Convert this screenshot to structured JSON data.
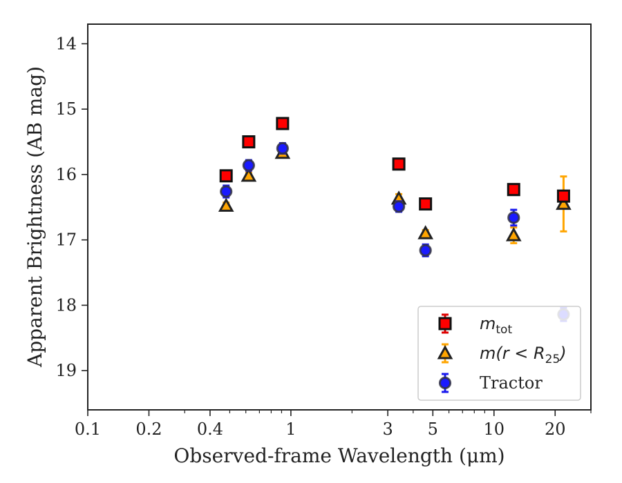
{
  "chart_data": {
    "type": "scatter",
    "xlabel": "Observed-frame Wavelength (μm)",
    "ylabel": "Apparent Brightness (AB mag)",
    "xscale": "log",
    "xlim": [
      0.1,
      30
    ],
    "ylim": [
      19.6,
      13.7
    ],
    "y_inverted": true,
    "x_ticks": [
      0.1,
      0.2,
      0.4,
      1,
      3,
      5,
      10,
      20
    ],
    "x_tick_labels": [
      "0.1",
      "0.2",
      "0.4",
      "1",
      "3",
      "5",
      "10",
      "20"
    ],
    "y_ticks": [
      14,
      15,
      16,
      17,
      18,
      19
    ],
    "y_tick_labels": [
      "14",
      "15",
      "16",
      "17",
      "18",
      "19"
    ],
    "grid": false,
    "legend_position": "lower-right",
    "series": [
      {
        "name": "m_tot",
        "marker": "square",
        "color": "#ff0000",
        "edge": "#111111",
        "errcolor": "#dd0000",
        "x": [
          0.48,
          0.62,
          0.91,
          3.4,
          4.6,
          12.5,
          22.0
        ],
        "y": [
          16.02,
          15.5,
          15.22,
          15.84,
          16.45,
          16.23,
          16.33
        ],
        "err": [
          0.05,
          0.05,
          0.05,
          0.07,
          0.05,
          0.05,
          0.05
        ]
      },
      {
        "name": "m(r < R25)",
        "marker": "triangle",
        "color": "#ffa500",
        "edge": "#222222",
        "errcolor": "#ffa500",
        "x": [
          0.48,
          0.62,
          0.91,
          3.4,
          4.6,
          12.5,
          22.0
        ],
        "y": [
          16.48,
          16.02,
          15.67,
          16.37,
          16.9,
          16.93,
          16.45
        ],
        "err": [
          0.05,
          0.05,
          0.05,
          0.07,
          0.05,
          0.12,
          0.42
        ]
      },
      {
        "name": "Tractor",
        "marker": "circle",
        "color": "#1a1aff",
        "edge": "#333344",
        "errcolor": "#1a1aee",
        "x": [
          0.48,
          0.62,
          0.91,
          3.4,
          4.6,
          12.5,
          22.0
        ],
        "y": [
          16.26,
          15.86,
          15.6,
          16.49,
          17.16,
          16.66,
          18.14
        ],
        "err": [
          0.09,
          0.08,
          0.08,
          0.08,
          0.09,
          0.12,
          0.1
        ]
      }
    ]
  },
  "legend": {
    "entries": [
      {
        "label_main": "m",
        "label_sub": "tot"
      },
      {
        "label_main": "m(r < R",
        "label_sub": "25",
        "label_tail": ")"
      },
      {
        "label_main": "Tractor"
      }
    ]
  }
}
